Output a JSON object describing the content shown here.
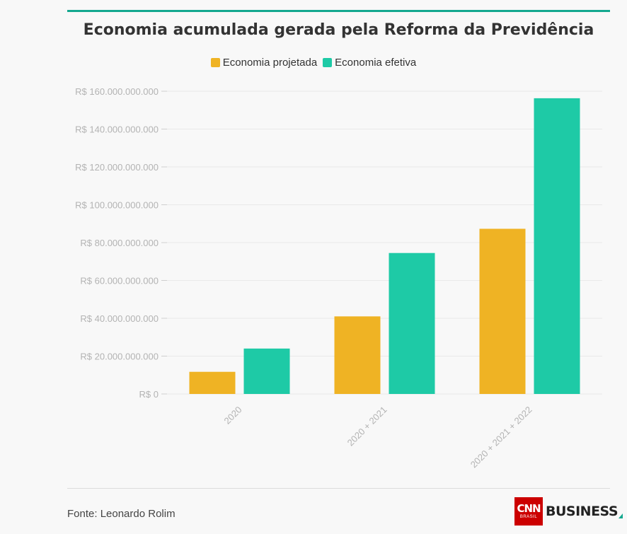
{
  "colors": {
    "projected": "#efb324",
    "actual": "#1ecaa6",
    "accent": "#14a88f"
  },
  "chart_data": {
    "type": "bar",
    "title": "Economia acumulada gerada pela Reforma da Previdência",
    "categories": [
      "2020",
      "2020 + 2021",
      "2020 + 2021 + 2022"
    ],
    "series": [
      {
        "name": "Economia projetada",
        "values": [
          11700000000,
          41000000000,
          87300000000
        ]
      },
      {
        "name": "Economia efetiva",
        "values": [
          24000000000,
          74500000000,
          156300000000
        ]
      }
    ],
    "yticks": [
      0,
      20000000000,
      40000000000,
      60000000000,
      80000000000,
      100000000000,
      120000000000,
      140000000000,
      160000000000
    ],
    "ytick_labels": [
      "R$ 0",
      "R$ 20.000.000.000",
      "R$ 40.000.000.000",
      "R$ 60.000.000.000",
      "R$ 80.000.000.000",
      "R$ 100.000.000.000",
      "R$ 120.000.000.000",
      "R$ 140.000.000.000",
      "R$ 160.000.000.000"
    ],
    "ylim": [
      0,
      160000000000
    ],
    "grid": true,
    "legend_position": "top-center"
  },
  "footer": {
    "source": "Fonte: Leonardo Rolim",
    "logo_text": "CNN",
    "logo_subtext": "BRASIL",
    "logo_business": "BUSINESS"
  }
}
